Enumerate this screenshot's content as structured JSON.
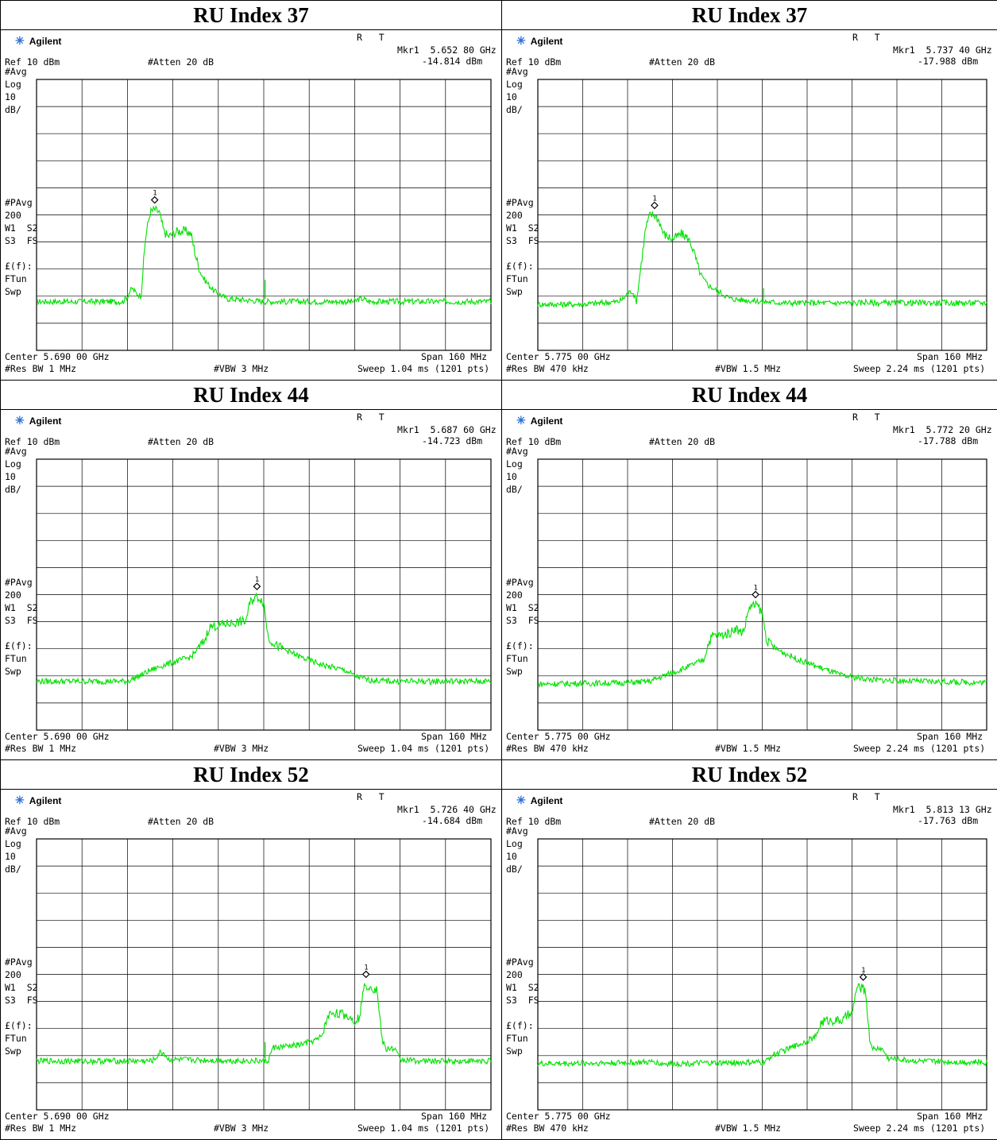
{
  "brand": {
    "name": "Agilent",
    "icon": "agilent-spark-icon"
  },
  "trace_color": "#00e000",
  "rows": [
    {
      "title": "RU Index 37"
    },
    {
      "title": "RU Index 44"
    },
    {
      "title": "RU Index 52"
    }
  ],
  "panels": [
    {
      "rt": "R   T",
      "mkr_freq": "Mkr1  5.652 80 GHz",
      "mkr_level": "-14.814 dBm",
      "ref": "Ref 10 dBm",
      "atten": "#Atten 20 dB",
      "avg": "#Avg",
      "log": "Log",
      "div": "10",
      "unit": "dB/",
      "pavg": "#PAvg",
      "pavg_n": "200",
      "w1": "W1  S2",
      "s3": "S3  FS",
      "lf": "£(f):",
      "ftun": "FTun",
      "swp": "Swp",
      "center": "Center 5.690 00 GHz",
      "span": "Span 160 MHz",
      "rbw": "#Res BW 1 MHz",
      "vbw": "#VBW 3 MHz",
      "sweep": "Sweep 1.04 ms (1201 pts)",
      "marker_label": "1"
    },
    {
      "rt": "R   T",
      "mkr_freq": "Mkr1  5.737 40 GHz",
      "mkr_level": "-17.988 dBm",
      "ref": "Ref 10 dBm",
      "atten": "#Atten 20 dB",
      "avg": "#Avg",
      "log": "Log",
      "div": "10",
      "unit": "dB/",
      "pavg": "#PAvg",
      "pavg_n": "200",
      "w1": "W1  S2",
      "s3": "S3  FS",
      "lf": "£(f):",
      "ftun": "FTun",
      "swp": "Swp",
      "center": "Center 5.775 00 GHz",
      "span": "Span 160 MHz",
      "rbw": "#Res BW 470 kHz",
      "vbw": "#VBW 1.5 MHz",
      "sweep": "Sweep 2.24 ms (1201 pts)",
      "marker_label": "1"
    },
    {
      "rt": "R   T",
      "mkr_freq": "Mkr1  5.687 60 GHz",
      "mkr_level": "-14.723 dBm",
      "ref": "Ref 10 dBm",
      "atten": "#Atten 20 dB",
      "avg": "#Avg",
      "log": "Log",
      "div": "10",
      "unit": "dB/",
      "pavg": "#PAvg",
      "pavg_n": "200",
      "w1": "W1  S2",
      "s3": "S3  FS",
      "lf": "£(f):",
      "ftun": "FTun",
      "swp": "Swp",
      "center": "Center 5.690 00 GHz",
      "span": "Span 160 MHz",
      "rbw": "#Res BW 1 MHz",
      "vbw": "#VBW 3 MHz",
      "sweep": "Sweep 1.04 ms (1201 pts)",
      "marker_label": "1"
    },
    {
      "rt": "R   T",
      "mkr_freq": "Mkr1  5.772 20 GHz",
      "mkr_level": "-17.788 dBm",
      "ref": "Ref 10 dBm",
      "atten": "#Atten 20 dB",
      "avg": "#Avg",
      "log": "Log",
      "div": "10",
      "unit": "dB/",
      "pavg": "#PAvg",
      "pavg_n": "200",
      "w1": "W1  S2",
      "s3": "S3  FS",
      "lf": "£(f):",
      "ftun": "FTun",
      "swp": "Swp",
      "center": "Center 5.775 00 GHz",
      "span": "Span 160 MHz",
      "rbw": "#Res BW 470 kHz",
      "vbw": "#VBW 1.5 MHz",
      "sweep": "Sweep 2.24 ms (1201 pts)",
      "marker_label": "1"
    },
    {
      "rt": "R   T",
      "mkr_freq": "Mkr1  5.726 40 GHz",
      "mkr_level": "-14.684 dBm",
      "ref": "Ref 10 dBm",
      "atten": "#Atten 20 dB",
      "avg": "#Avg",
      "log": "Log",
      "div": "10",
      "unit": "dB/",
      "pavg": "#PAvg",
      "pavg_n": "200",
      "w1": "W1  S2",
      "s3": "S3  FS",
      "lf": "£(f):",
      "ftun": "FTun",
      "swp": "Swp",
      "center": "Center 5.690 00 GHz",
      "span": "Span 160 MHz",
      "rbw": "#Res BW 1 MHz",
      "vbw": "#VBW 3 MHz",
      "sweep": "Sweep 1.04 ms (1201 pts)",
      "marker_label": "1"
    },
    {
      "rt": "R   T",
      "mkr_freq": "Mkr1  5.813 13 GHz",
      "mkr_level": "-17.763 dBm",
      "ref": "Ref 10 dBm",
      "atten": "#Atten 20 dB",
      "avg": "#Avg",
      "log": "Log",
      "div": "10",
      "unit": "dB/",
      "pavg": "#PAvg",
      "pavg_n": "200",
      "w1": "W1  S2",
      "s3": "S3  FS",
      "lf": "£(f):",
      "ftun": "FTun",
      "swp": "Swp",
      "center": "Center 5.775 00 GHz",
      "span": "Span 160 MHz",
      "rbw": "#Res BW 470 kHz",
      "vbw": "#VBW 1.5 MHz",
      "sweep": "Sweep 2.24 ms (1201 pts)",
      "marker_label": "1"
    }
  ],
  "traces": [
    {
      "pts": [
        [
          0,
          -72
        ],
        [
          19,
          -72
        ],
        [
          20,
          -70
        ],
        [
          21,
          -67
        ],
        [
          22,
          -69
        ],
        [
          23,
          -70
        ],
        [
          24,
          -48
        ],
        [
          25,
          -39
        ],
        [
          26,
          -38
        ],
        [
          27,
          -39
        ],
        [
          28,
          -46
        ],
        [
          29,
          -48
        ],
        [
          30,
          -47
        ],
        [
          31,
          -46
        ],
        [
          32,
          -46
        ],
        [
          33,
          -46
        ],
        [
          34,
          -47
        ],
        [
          35,
          -55
        ],
        [
          36,
          -61
        ],
        [
          37,
          -64
        ],
        [
          38,
          -66
        ],
        [
          39,
          -68
        ],
        [
          40,
          -69
        ],
        [
          41,
          -70
        ],
        [
          42,
          -71
        ],
        [
          43,
          -71
        ],
        [
          50,
          -72
        ],
        [
          55,
          -72
        ],
        [
          70,
          -72
        ],
        [
          71,
          -71
        ],
        [
          72,
          -71
        ],
        [
          73,
          -72
        ],
        [
          100,
          -72
        ]
      ],
      "spur": [
        50.3,
        -64
      ]
    },
    {
      "pts": [
        [
          0,
          -73
        ],
        [
          10,
          -73
        ],
        [
          18,
          -72
        ],
        [
          19,
          -71
        ],
        [
          20,
          -69
        ],
        [
          21,
          -68
        ],
        [
          22,
          -72
        ],
        [
          24,
          -45
        ],
        [
          25,
          -40
        ],
        [
          26,
          -40
        ],
        [
          27,
          -42
        ],
        [
          28,
          -47
        ],
        [
          29,
          -48
        ],
        [
          30,
          -49
        ],
        [
          31,
          -48
        ],
        [
          32,
          -47
        ],
        [
          33,
          -48
        ],
        [
          34,
          -50
        ],
        [
          35,
          -55
        ],
        [
          36,
          -61
        ],
        [
          37,
          -64
        ],
        [
          38,
          -66
        ],
        [
          39,
          -67
        ],
        [
          40,
          -68
        ],
        [
          41,
          -69
        ],
        [
          42,
          -70
        ],
        [
          43,
          -71
        ],
        [
          50,
          -72
        ],
        [
          55,
          -72.5
        ],
        [
          72,
          -72.5
        ],
        [
          73,
          -72
        ],
        [
          74,
          -72.5
        ],
        [
          100,
          -72.5
        ]
      ],
      "spur": [
        50.3,
        -67
      ]
    },
    {
      "pts": [
        [
          0,
          -72
        ],
        [
          20,
          -72
        ],
        [
          22,
          -70.5
        ],
        [
          25,
          -68
        ],
        [
          28,
          -66
        ],
        [
          34,
          -63
        ],
        [
          37,
          -57
        ],
        [
          38,
          -52
        ],
        [
          41,
          -51
        ],
        [
          45,
          -50
        ],
        [
          46,
          -50
        ],
        [
          47,
          -43
        ],
        [
          48,
          -41
        ],
        [
          49,
          -41
        ],
        [
          50,
          -43
        ],
        [
          51,
          -56
        ],
        [
          53,
          -59
        ],
        [
          58,
          -63
        ],
        [
          63,
          -66
        ],
        [
          68,
          -68
        ],
        [
          70,
          -70
        ],
        [
          73,
          -71.5
        ],
        [
          78,
          -72
        ],
        [
          100,
          -72
        ]
      ],
      "spur": null
    },
    {
      "pts": [
        [
          0,
          -73
        ],
        [
          20,
          -72.5
        ],
        [
          25,
          -72
        ],
        [
          28,
          -70
        ],
        [
          33,
          -67
        ],
        [
          37,
          -64
        ],
        [
          38,
          -58
        ],
        [
          39,
          -55
        ],
        [
          41,
          -55
        ],
        [
          43,
          -54
        ],
        [
          44,
          -52
        ],
        [
          45,
          -54
        ],
        [
          46,
          -53
        ],
        [
          47,
          -45
        ],
        [
          48,
          -44
        ],
        [
          49,
          -44
        ],
        [
          50,
          -47
        ],
        [
          51,
          -57
        ],
        [
          53,
          -60
        ],
        [
          58,
          -64
        ],
        [
          63,
          -67
        ],
        [
          68,
          -70
        ],
        [
          75,
          -71.5
        ],
        [
          85,
          -72
        ],
        [
          100,
          -72.5
        ]
      ],
      "spur": null
    },
    {
      "pts": [
        [
          0,
          -72
        ],
        [
          25,
          -72
        ],
        [
          26,
          -71.5
        ],
        [
          27,
          -69
        ],
        [
          28,
          -69
        ],
        [
          29,
          -71.5
        ],
        [
          50,
          -72
        ],
        [
          51,
          -72
        ],
        [
          52,
          -67
        ],
        [
          53,
          -67
        ],
        [
          58,
          -66
        ],
        [
          62,
          -64
        ],
        [
          63,
          -62
        ],
        [
          64,
          -56
        ],
        [
          65,
          -54
        ],
        [
          68,
          -55
        ],
        [
          70,
          -57
        ],
        [
          71,
          -56
        ],
        [
          72,
          -45
        ],
        [
          73,
          -44
        ],
        [
          75,
          -46
        ],
        [
          76,
          -64
        ],
        [
          77,
          -68
        ],
        [
          78,
          -67
        ],
        [
          79,
          -68
        ],
        [
          80,
          -71.5
        ],
        [
          85,
          -72
        ],
        [
          100,
          -72
        ]
      ],
      "spur": [
        50.3,
        -65
      ]
    },
    {
      "pts": [
        [
          0,
          -73
        ],
        [
          25,
          -72.5
        ],
        [
          26,
          -72
        ],
        [
          27,
          -73
        ],
        [
          50,
          -72.5
        ],
        [
          51,
          -72
        ],
        [
          52,
          -70
        ],
        [
          55,
          -68
        ],
        [
          58,
          -66
        ],
        [
          62,
          -63
        ],
        [
          63,
          -58
        ],
        [
          64,
          -57
        ],
        [
          68,
          -57
        ],
        [
          69,
          -55
        ],
        [
          70,
          -55
        ],
        [
          71,
          -45
        ],
        [
          72,
          -45
        ],
        [
          73,
          -46
        ],
        [
          74,
          -65
        ],
        [
          75,
          -68
        ],
        [
          76,
          -67
        ],
        [
          77,
          -68
        ],
        [
          78,
          -71
        ],
        [
          85,
          -72
        ],
        [
          100,
          -72.5
        ]
      ],
      "spur": null
    }
  ],
  "markers": [
    [
      26,
      -38
    ],
    [
      26,
      -40
    ],
    [
      48.5,
      -40.5
    ],
    [
      48.5,
      -43.5
    ],
    [
      72.5,
      -43.5
    ],
    [
      72.5,
      -44.5
    ]
  ]
}
